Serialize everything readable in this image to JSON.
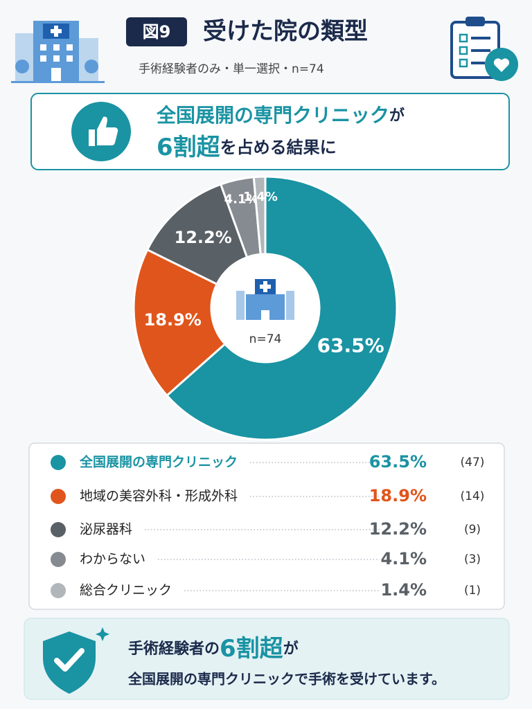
{
  "header": {
    "figure_label": "図9",
    "subtitle": "手術経験者のみ・単一選択・n=74"
  },
  "headline": {
    "line1_emphasis": "全国展開の専門クリニック",
    "line1_rest": "が",
    "line2_emphasis": "6割超",
    "line2_rest": "を占める結果に"
  },
  "chart_data": {
    "type": "pie",
    "title": "受けた院の類型",
    "center_label": "n=74",
    "categories": [
      "全国展開の専門クリニック",
      "地域の美容外科・形成外科",
      "泌尿器科",
      "わからない",
      "総合クリニック"
    ],
    "values": [
      63.5,
      18.9,
      12.2,
      4.1,
      1.4
    ],
    "value_labels": [
      "63.5%",
      "18.9%",
      "12.2%",
      "4.1%",
      "1.4%"
    ],
    "count_labels": [
      "(47)",
      "(14)",
      "(9)",
      "(3)",
      "(1)"
    ],
    "colors": [
      "#1a93a3",
      "#e0551c",
      "#596066",
      "#858b90",
      "#b1b6ba"
    ]
  },
  "footer": {
    "line1_start": "手術経験者の",
    "line1_emphasis": "6割超",
    "line1_end": "が",
    "line2": "全国展開の専門クリニックで手術を受けています。"
  }
}
